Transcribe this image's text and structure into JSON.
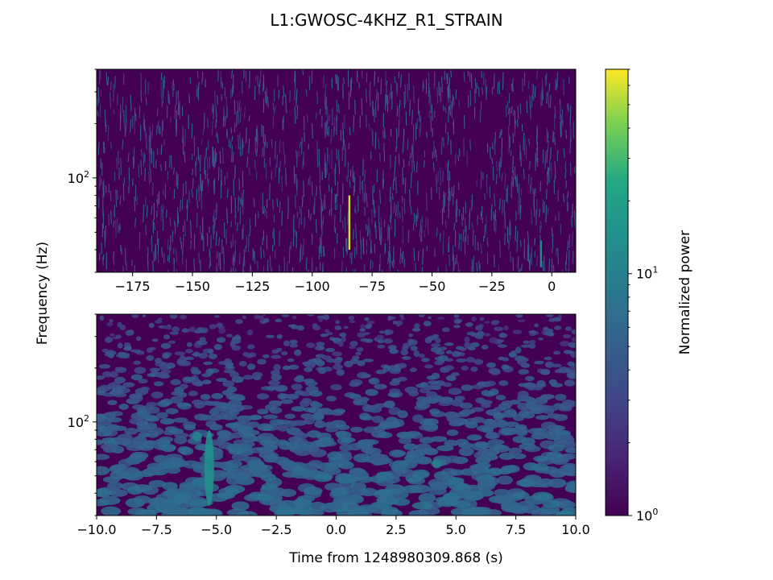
{
  "chart_data": {
    "type": "heatmap",
    "title": "L1:GWOSC-4KHZ_R1_STRAIN",
    "ylabel": "Frequency (Hz)",
    "xlabel": "Time from 1248980309.868 (s)",
    "colorbar": {
      "label": "Normalized power",
      "colormap": "viridis",
      "scale": "log",
      "range": [
        1,
        70
      ],
      "tick_values": [
        1,
        10
      ],
      "tick_labels": [
        "10^0",
        "10^1"
      ]
    },
    "panels": [
      {
        "name": "top",
        "xlim": [
          -190,
          10
        ],
        "ylim": [
          30,
          400
        ],
        "yscale": "log",
        "x_ticks": [
          -175,
          -150,
          -125,
          -100,
          -75,
          -50,
          -25,
          0
        ],
        "x_tick_labels": [
          "−175",
          "−150",
          "−125",
          "−100",
          "−75",
          "−50",
          "−25",
          "0"
        ],
        "y_tick_labels": [
          "10^2"
        ],
        "features": [
          {
            "time": -84.5,
            "freq_range": [
              40,
              80
            ],
            "peak_power": 60
          },
          {
            "time": -4.5,
            "freq_range": [
              32,
              45
            ],
            "peak_power": 12
          }
        ]
      },
      {
        "name": "bottom",
        "xlim": [
          -10,
          10
        ],
        "ylim": [
          30,
          400
        ],
        "yscale": "log",
        "x_ticks": [
          -10,
          -7.5,
          -5,
          -2.5,
          0,
          2.5,
          5,
          7.5,
          10
        ],
        "x_tick_labels": [
          "−10.0",
          "−7.5",
          "−5.0",
          "−2.5",
          "0.0",
          "2.5",
          "5.0",
          "7.5",
          "10.0"
        ],
        "y_tick_labels": [
          "10^2"
        ],
        "features": [
          {
            "time": -5.3,
            "freq_range": [
              34,
              90
            ],
            "peak_power": 14
          },
          {
            "time": -5.8,
            "freq_range": [
              78,
              88
            ],
            "peak_power": 11
          },
          {
            "time": 4.2,
            "freq_range": [
              55,
              62
            ],
            "peak_power": 10
          }
        ]
      }
    ]
  }
}
